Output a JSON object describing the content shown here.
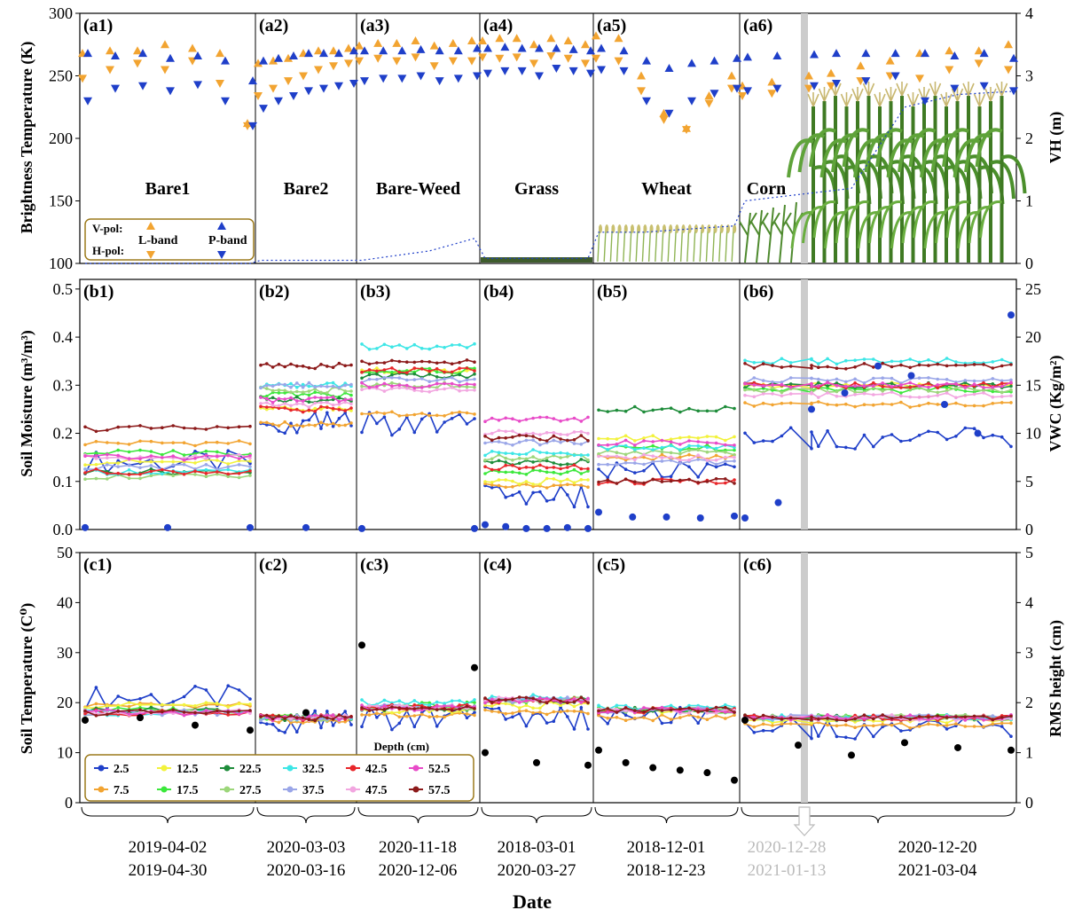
{
  "chart_data": {
    "type": "line",
    "xlabel": "Date",
    "panels": {
      "top": {
        "ylabel_left": "Brightness Temperature (K)",
        "ylabel_right": "VH (m)",
        "ylim_left": [
          100,
          300
        ],
        "ylim_right": [
          0,
          4
        ],
        "yticks_left": [
          100,
          150,
          200,
          250,
          300
        ],
        "yticks_right": [
          0,
          1,
          2,
          3,
          4
        ],
        "labels": [
          "(a1)",
          "(a2)",
          "(a3)",
          "(a4)",
          "(a5)",
          "(a6)"
        ],
        "names": [
          "Bare1",
          "Bare2",
          "Bare-Weed",
          "Grass",
          "Wheat",
          "Corn"
        ],
        "legend": {
          "row1": "V-pol:",
          "row2": "H-pol:",
          "lband": "L-band",
          "pband": "P-band"
        },
        "series": [
          {
            "name": "V-pol L-band",
            "color": "#F2A431",
            "values": [
              [
                268,
                270,
                270,
                275,
                272,
                268,
                212,
                260,
                262,
                264,
                268,
                270,
                270,
                272,
                274,
                276,
                276,
                278,
                274,
                276,
                278,
                278,
                280,
                280,
                275,
                280,
                278,
                275,
                282,
                280,
                250,
                220,
                208,
                234,
                250,
                242,
                245,
                250,
                252,
                258,
                262
              ]
            ]
          },
          {
            "name": "H-pol L-band",
            "color": "#F2A431",
            "values": [
              [
                248,
                255,
                260,
                255,
                262,
                244,
                210,
                234,
                240,
                246,
                250,
                255,
                258,
                260,
                262,
                264,
                262,
                265,
                258,
                262,
                262,
                265,
                264,
                265,
                260,
                266,
                264,
                260,
                264,
                262,
                238,
                215,
                207,
                228,
                240,
                234,
                236,
                240,
                242,
                246,
                250
              ]
            ]
          },
          {
            "name": "V-pol P-band",
            "color": "#1F3FC9",
            "values": [
              [
                268,
                266,
                268,
                264,
                266,
                262,
                246,
                262,
                264,
                266,
                268,
                268,
                268,
                270,
                270,
                270,
                270,
                271,
                270,
                270,
                272,
                272,
                273,
                272,
                272,
                272,
                271,
                270,
                272,
                270,
                262,
                256,
                260,
                262,
                264,
                265,
                266,
                267,
                268,
                268,
                268
              ]
            ]
          },
          {
            "name": "H-pol P-band",
            "color": "#1F3FC9",
            "values": [
              [
                230,
                240,
                242,
                238,
                243,
                230,
                210,
                224,
                230,
                234,
                238,
                240,
                242,
                244,
                246,
                248,
                248,
                250,
                246,
                248,
                250,
                252,
                254,
                254,
                250,
                256,
                254,
                252,
                255,
                254,
                230,
                220,
                230,
                236,
                240,
                238,
                240,
                242,
                244,
                246,
                250
              ]
            ]
          }
        ]
      },
      "middle": {
        "ylabel_left": "Soil Moisture (m³/m³)",
        "ylabel_right": "VWC (Kg/m²)",
        "ylim_left": [
          0,
          0.52
        ],
        "ylim_right": [
          0,
          26
        ],
        "yticks_left": [
          "0.0",
          "0.1",
          "0.2",
          "0.3",
          "0.4",
          "0.5"
        ],
        "yticks_right": [
          0,
          5,
          10,
          15,
          20,
          25
        ],
        "labels": [
          "(b1)",
          "(b2)",
          "(b3)",
          "(b4)",
          "(b5)",
          "(b6)"
        ]
      },
      "bottom": {
        "ylabel_left": "Soil Temperature (C⁰)",
        "ylabel_right": "RMS height (cm)",
        "ylim_left": [
          0,
          50
        ],
        "ylim_right": [
          0,
          5
        ],
        "yticks_left": [
          0,
          10,
          20,
          30,
          40,
          50
        ],
        "yticks_right": [
          0,
          1,
          2,
          3,
          4,
          5
        ],
        "labels": [
          "(c1)",
          "(c2)",
          "(c3)",
          "(c4)",
          "(c5)",
          "(c6)"
        ],
        "legend_title": "Depth (cm)"
      }
    },
    "depths": [
      {
        "label": "2.5",
        "color": "#1F3FC9"
      },
      {
        "label": "7.5",
        "color": "#F2A431"
      },
      {
        "label": "12.5",
        "color": "#F2F23C"
      },
      {
        "label": "17.5",
        "color": "#3BE83B"
      },
      {
        "label": "22.5",
        "color": "#1E8C3A"
      },
      {
        "label": "27.5",
        "color": "#9CD67A"
      },
      {
        "label": "32.5",
        "color": "#3DE6E6"
      },
      {
        "label": "37.5",
        "color": "#9AA6E8"
      },
      {
        "label": "42.5",
        "color": "#E8262A"
      },
      {
        "label": "47.5",
        "color": "#F2A6E0"
      },
      {
        "label": "52.5",
        "color": "#E84BC8"
      },
      {
        "label": "57.5",
        "color": "#8C1A1A"
      }
    ],
    "sm_levels": [
      [
        0.14,
        0.18,
        0.14,
        0.16,
        0.12,
        0.11,
        0.12,
        0.13,
        0.12,
        0.15,
        0.15,
        0.21
      ],
      [
        0.22,
        0.22,
        0.25,
        0.28,
        0.27,
        0.29,
        0.3,
        0.3,
        0.25,
        0.26,
        0.27,
        0.34
      ],
      [
        0.22,
        0.24,
        0.33,
        0.33,
        0.32,
        0.3,
        0.38,
        0.31,
        0.33,
        0.29,
        0.3,
        0.35
      ],
      [
        0.07,
        0.09,
        0.1,
        0.12,
        0.14,
        0.15,
        0.16,
        0.18,
        0.13,
        0.2,
        0.23,
        0.19
      ],
      [
        0.13,
        0.15,
        0.19,
        0.17,
        0.25,
        0.16,
        0.17,
        0.14,
        0.1,
        0.15,
        0.18,
        0.1
      ],
      [
        0.19,
        0.26,
        0.3,
        0.29,
        0.3,
        0.29,
        0.35,
        0.31,
        0.3,
        0.28,
        0.3,
        0.34
      ]
    ],
    "st_levels": [
      [
        21,
        19.5,
        19.5,
        18.5,
        18.5,
        18,
        18,
        18,
        18,
        18,
        18,
        18
      ],
      [
        16,
        16.5,
        17,
        17,
        17,
        17,
        17,
        17,
        17,
        17,
        17,
        17
      ],
      [
        17,
        17.5,
        18.5,
        19.5,
        19,
        19,
        20,
        19,
        19,
        19,
        19,
        19
      ],
      [
        17,
        18,
        19.5,
        20.5,
        20.5,
        20.5,
        21,
        20.5,
        20.5,
        20.5,
        20.5,
        20.5
      ],
      [
        18,
        17,
        18.5,
        18.5,
        18.5,
        18.5,
        19,
        18.5,
        18.5,
        18.5,
        18.5,
        18.5
      ],
      [
        15,
        15.5,
        16.5,
        17,
        17,
        17,
        17,
        17,
        17,
        17,
        17,
        17
      ]
    ],
    "vwc_points": [
      [
        0.2,
        0.2,
        0.2
      ],
      [
        0.2
      ],
      [
        0.1,
        0.1
      ],
      [
        0.5,
        0.3,
        0.1,
        0.1,
        0.2,
        0.1
      ],
      [
        1.8,
        1.3,
        1.3,
        1.2,
        1.4
      ],
      [
        1.2,
        2.8,
        12.5,
        14.2,
        17,
        16,
        13,
        10,
        22.3
      ]
    ],
    "rms_points": [
      [
        1.65,
        1.7,
        1.55,
        1.45
      ],
      [
        1.8
      ],
      [
        3.15,
        2.7
      ],
      [
        1.0,
        0.8,
        0.75
      ],
      [
        1.05,
        0.8,
        0.7,
        0.65,
        0.6,
        0.45
      ],
      [
        1.65,
        1.15,
        0.95,
        1.2,
        1.1,
        1.05
      ]
    ],
    "vh_values": [
      [
        0,
        0,
        0
      ],
      [
        0.05,
        0.05,
        0.05,
        0.05,
        0.05
      ],
      [
        0.05,
        0.1,
        0.15,
        0.2,
        0.3,
        0.4
      ],
      [
        0.08,
        0.08,
        0.08,
        0.08
      ],
      [
        0.5,
        0.5,
        0.55,
        0.6
      ],
      [
        1.0,
        1.1,
        1.2,
        2.5,
        2.7,
        2.75
      ]
    ],
    "period_top": [
      "2019-04-02",
      "2020-03-03",
      "2020-11-18",
      "2018-03-01",
      "2018-12-01",
      "2020-12-28",
      "2020-12-20"
    ],
    "period_bottom": [
      "2019-04-30",
      "2020-03-16",
      "2020-12-06",
      "2020-03-27",
      "2018-12-23",
      "2021-01-13",
      "2021-03-04"
    ],
    "colors": {
      "lband": "#F2A431",
      "pband": "#1F3FC9",
      "faded_text": "#BBBBBB",
      "gray_band": "#CCCCCC",
      "legend_border": "#9C7A1C"
    }
  }
}
